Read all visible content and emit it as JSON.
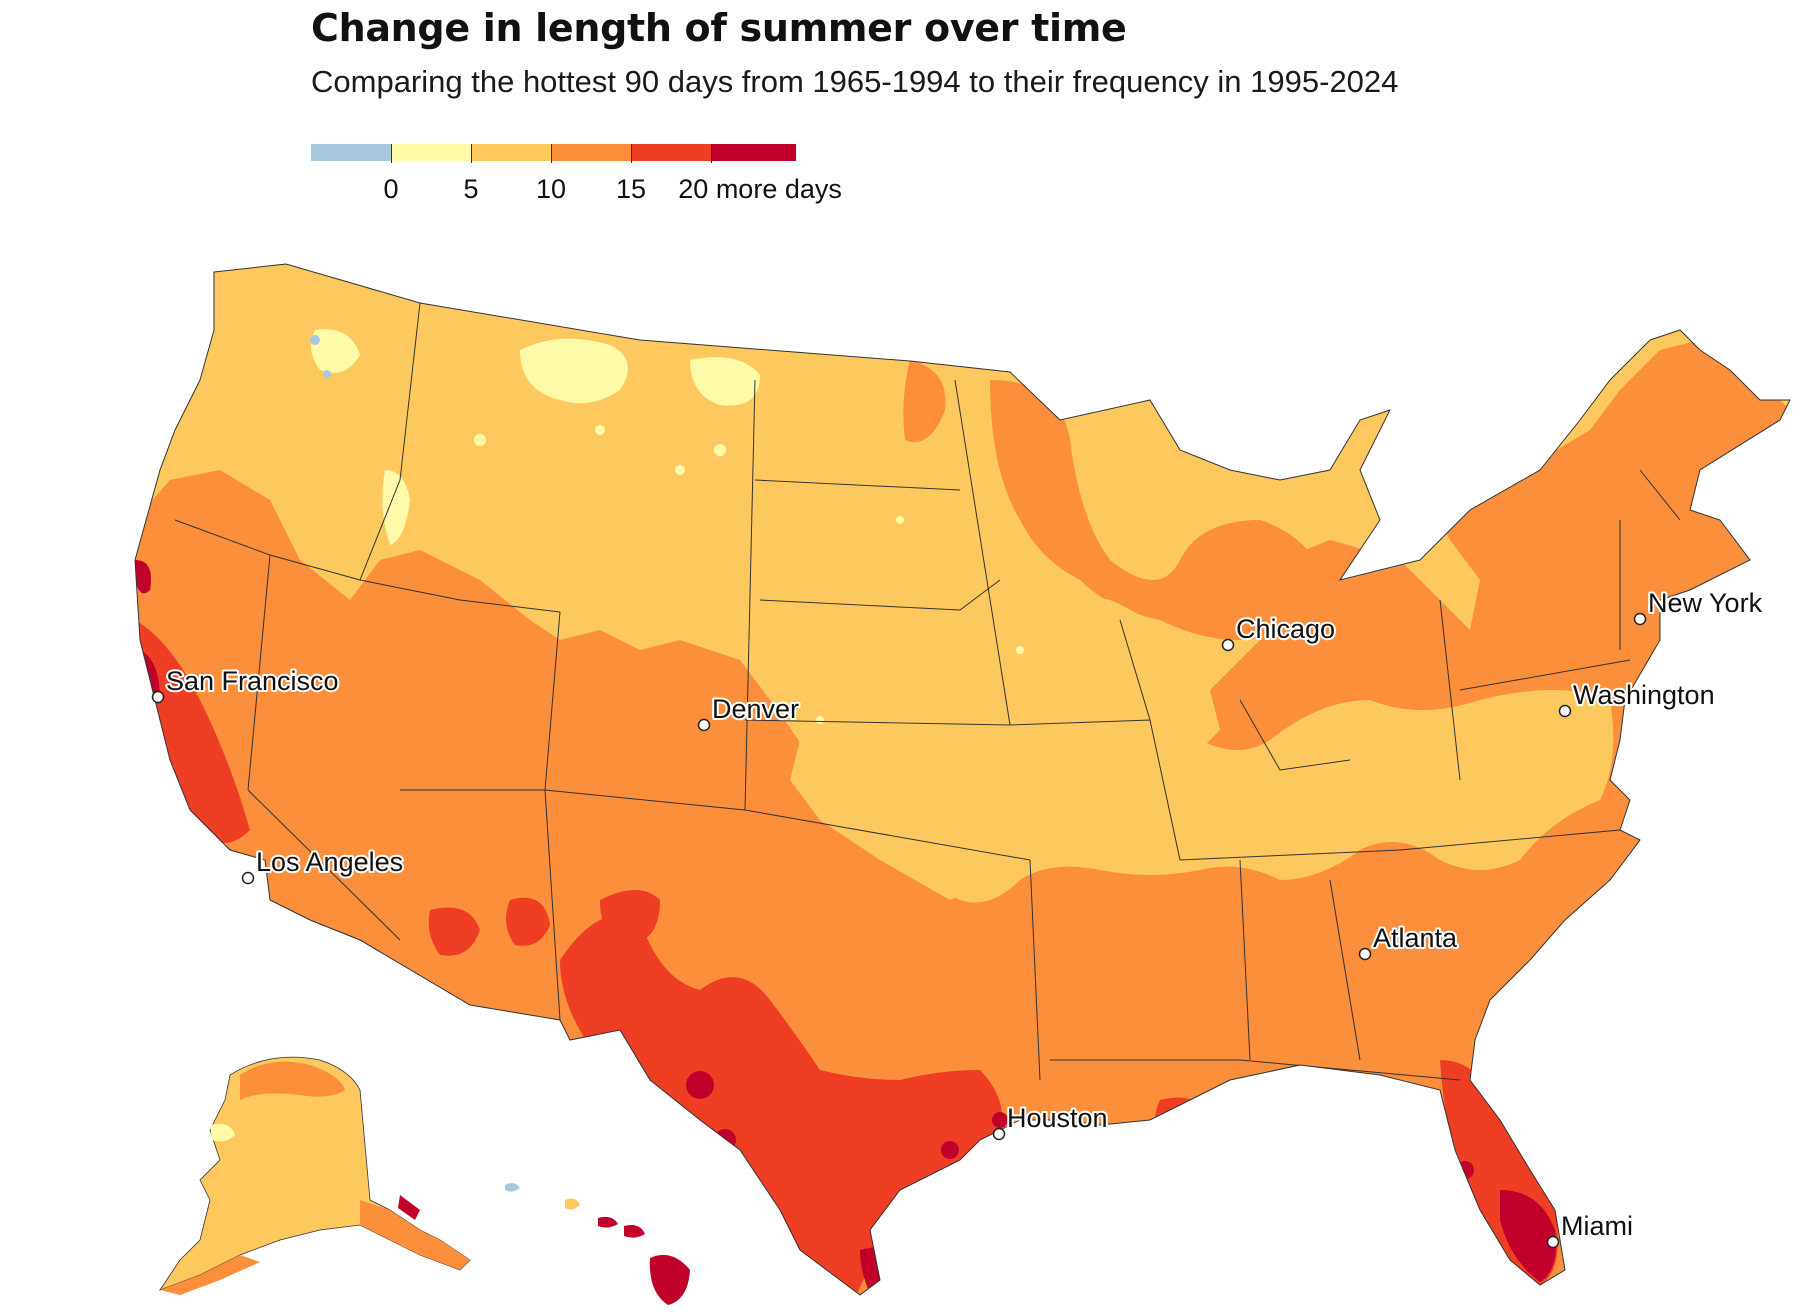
{
  "title": "Change in length of summer over time",
  "subtitle": "Comparing the hottest 90 days from 1965-1994 to their frequency in 1995-2024",
  "legend": {
    "bins": [
      {
        "label": "less than 0",
        "color": "#a6c8e0"
      },
      {
        "label": "0 to 5",
        "color": "#fffaa8"
      },
      {
        "label": "5 to 10",
        "color": "#fdc95e"
      },
      {
        "label": "10 to 15",
        "color": "#fb8f3c"
      },
      {
        "label": "15 to 20",
        "color": "#ee3f24"
      },
      {
        "label": "20 or more",
        "color": "#c0002a"
      }
    ],
    "ticks": [
      "0",
      "5",
      "10",
      "15",
      "20 more days"
    ]
  },
  "colors": {
    "minus": "#a6c8e0",
    "c0_5": "#fffaa8",
    "c5_10": "#fdc95e",
    "c10_15": "#fb8f3c",
    "c15_20": "#ee3f24",
    "c20": "#c0002a",
    "border": "#333333"
  },
  "cities": [
    {
      "name": "San Francisco"
    },
    {
      "name": "Los Angeles"
    },
    {
      "name": "Denver"
    },
    {
      "name": "Chicago"
    },
    {
      "name": "Houston"
    },
    {
      "name": "Atlanta"
    },
    {
      "name": "New York"
    },
    {
      "name": "Washington"
    },
    {
      "name": "Miami"
    }
  ]
}
